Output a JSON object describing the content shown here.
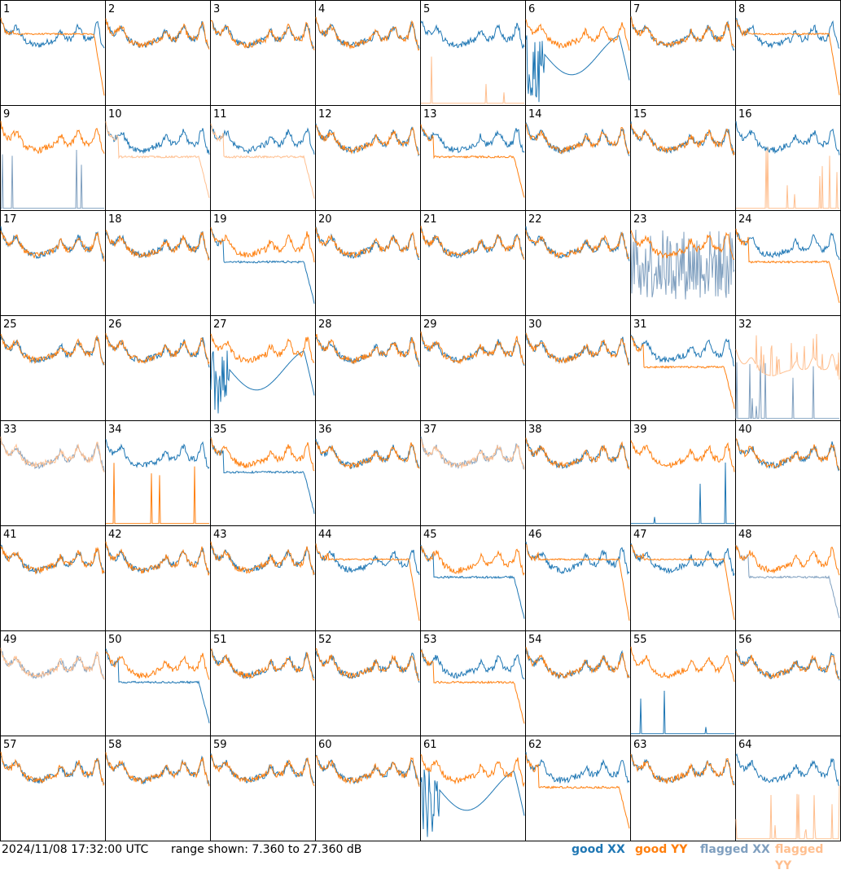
{
  "chart_data": {
    "type": "line",
    "panel_count": 64,
    "panels": [
      {
        "label": "1",
        "xx": "good",
        "yy": "good",
        "shape": "rolloff"
      },
      {
        "label": "2",
        "xx": "good",
        "yy": "good",
        "shape": "normal"
      },
      {
        "label": "3",
        "xx": "good",
        "yy": "good",
        "shape": "normal"
      },
      {
        "label": "4",
        "xx": "good",
        "yy": "good",
        "shape": "normal"
      },
      {
        "label": "5",
        "xx": "good",
        "yy": "flagged",
        "shape": "yy_dead"
      },
      {
        "label": "6",
        "xx": "good",
        "yy": "good",
        "shape": "xx_noisy_low"
      },
      {
        "label": "7",
        "xx": "good",
        "yy": "good",
        "shape": "normal"
      },
      {
        "label": "8",
        "xx": "good",
        "yy": "good",
        "shape": "rolloff"
      },
      {
        "label": "9",
        "xx": "flagged",
        "yy": "good",
        "shape": "xx_dead"
      },
      {
        "label": "10",
        "xx": "good",
        "yy": "flagged",
        "shape": "yy_low_flagged"
      },
      {
        "label": "11",
        "xx": "good",
        "yy": "flagged",
        "shape": "yy_low_flagged"
      },
      {
        "label": "12",
        "xx": "good",
        "yy": "good",
        "shape": "normal"
      },
      {
        "label": "13",
        "xx": "good",
        "yy": "good",
        "shape": "yy_low"
      },
      {
        "label": "14",
        "xx": "good",
        "yy": "good",
        "shape": "normal"
      },
      {
        "label": "15",
        "xx": "good",
        "yy": "good",
        "shape": "normal"
      },
      {
        "label": "16",
        "xx": "good",
        "yy": "flagged",
        "shape": "yy_dead"
      },
      {
        "label": "17",
        "xx": "good",
        "yy": "good",
        "shape": "normal"
      },
      {
        "label": "18",
        "xx": "good",
        "yy": "good",
        "shape": "normal"
      },
      {
        "label": "19",
        "xx": "good",
        "yy": "good",
        "shape": "xx_low"
      },
      {
        "label": "20",
        "xx": "good",
        "yy": "good",
        "shape": "normal"
      },
      {
        "label": "21",
        "xx": "good",
        "yy": "good",
        "shape": "normal"
      },
      {
        "label": "22",
        "xx": "good",
        "yy": "good",
        "shape": "normal"
      },
      {
        "label": "23",
        "xx": "flagged",
        "yy": "good",
        "shape": "xx_noise"
      },
      {
        "label": "24",
        "xx": "good",
        "yy": "good",
        "shape": "yy_low"
      },
      {
        "label": "25",
        "xx": "good",
        "yy": "good",
        "shape": "normal"
      },
      {
        "label": "26",
        "xx": "good",
        "yy": "good",
        "shape": "normal"
      },
      {
        "label": "27",
        "xx": "good",
        "yy": "good",
        "shape": "xx_noisy_low"
      },
      {
        "label": "28",
        "xx": "good",
        "yy": "good",
        "shape": "normal"
      },
      {
        "label": "29",
        "xx": "good",
        "yy": "good",
        "shape": "normal"
      },
      {
        "label": "30",
        "xx": "good",
        "yy": "good",
        "shape": "normal"
      },
      {
        "label": "31",
        "xx": "good",
        "yy": "good",
        "shape": "yy_low"
      },
      {
        "label": "32",
        "xx": "flagged",
        "yy": "flagged",
        "shape": "both_flagged_spiky"
      },
      {
        "label": "33",
        "xx": "flagged",
        "yy": "flagged",
        "shape": "both_flagged"
      },
      {
        "label": "34",
        "xx": "good",
        "yy": "good",
        "shape": "yy_dead_spiky"
      },
      {
        "label": "35",
        "xx": "good",
        "yy": "good",
        "shape": "xx_low"
      },
      {
        "label": "36",
        "xx": "good",
        "yy": "good",
        "shape": "normal"
      },
      {
        "label": "37",
        "xx": "flagged",
        "yy": "flagged",
        "shape": "both_flagged"
      },
      {
        "label": "38",
        "xx": "good",
        "yy": "good",
        "shape": "normal"
      },
      {
        "label": "39",
        "xx": "good",
        "yy": "good",
        "shape": "xx_dead"
      },
      {
        "label": "40",
        "xx": "good",
        "yy": "good",
        "shape": "normal"
      },
      {
        "label": "41",
        "xx": "good",
        "yy": "good",
        "shape": "normal"
      },
      {
        "label": "42",
        "xx": "good",
        "yy": "good",
        "shape": "normal"
      },
      {
        "label": "43",
        "xx": "good",
        "yy": "good",
        "shape": "normal"
      },
      {
        "label": "44",
        "xx": "good",
        "yy": "good",
        "shape": "rolloff"
      },
      {
        "label": "45",
        "xx": "good",
        "yy": "good",
        "shape": "xx_low"
      },
      {
        "label": "46",
        "xx": "good",
        "yy": "good",
        "shape": "rolloff"
      },
      {
        "label": "47",
        "xx": "good",
        "yy": "good",
        "shape": "rolloff"
      },
      {
        "label": "48",
        "xx": "flagged",
        "yy": "good",
        "shape": "xx_flagged_low"
      },
      {
        "label": "49",
        "xx": "flagged",
        "yy": "flagged",
        "shape": "both_flagged"
      },
      {
        "label": "50",
        "xx": "good",
        "yy": "good",
        "shape": "xx_low"
      },
      {
        "label": "51",
        "xx": "good",
        "yy": "good",
        "shape": "normal"
      },
      {
        "label": "52",
        "xx": "good",
        "yy": "good",
        "shape": "normal"
      },
      {
        "label": "53",
        "xx": "good",
        "yy": "good",
        "shape": "yy_low"
      },
      {
        "label": "54",
        "xx": "good",
        "yy": "good",
        "shape": "normal"
      },
      {
        "label": "55",
        "xx": "good",
        "yy": "good",
        "shape": "xx_dead"
      },
      {
        "label": "56",
        "xx": "good",
        "yy": "good",
        "shape": "normal"
      },
      {
        "label": "57",
        "xx": "good",
        "yy": "good",
        "shape": "normal"
      },
      {
        "label": "58",
        "xx": "good",
        "yy": "good",
        "shape": "normal"
      },
      {
        "label": "59",
        "xx": "good",
        "yy": "good",
        "shape": "normal"
      },
      {
        "label": "60",
        "xx": "good",
        "yy": "good",
        "shape": "normal"
      },
      {
        "label": "61",
        "xx": "good",
        "yy": "good",
        "shape": "xx_noisy_low"
      },
      {
        "label": "62",
        "xx": "good",
        "yy": "good",
        "shape": "yy_low"
      },
      {
        "label": "63",
        "xx": "good",
        "yy": "good",
        "shape": "normal"
      },
      {
        "label": "64",
        "xx": "good",
        "yy": "flagged",
        "shape": "yy_dead"
      }
    ],
    "ylim": [
      7.36,
      27.36
    ],
    "unit": "dB",
    "grid": false,
    "legend_placement": "bottom-right"
  },
  "footer": {
    "timestamp": "2024/11/08 17:32:00 UTC",
    "range_text": "range shown: 7.360 to 27.360 dB"
  },
  "legend": [
    {
      "label": "good XX",
      "color": "#1f77b4"
    },
    {
      "label": "good YY",
      "color": "#ff7f0e"
    },
    {
      "label": "flagged XX",
      "color": "#7f9fbf"
    },
    {
      "label": "flagged YY",
      "color": "#ffbf8f"
    }
  ],
  "colors": {
    "good_xx": "#1f77b4",
    "good_yy": "#ff7f0e",
    "flagged_xx": "#7f9fbf",
    "flagged_yy": "#ffbf8f"
  }
}
